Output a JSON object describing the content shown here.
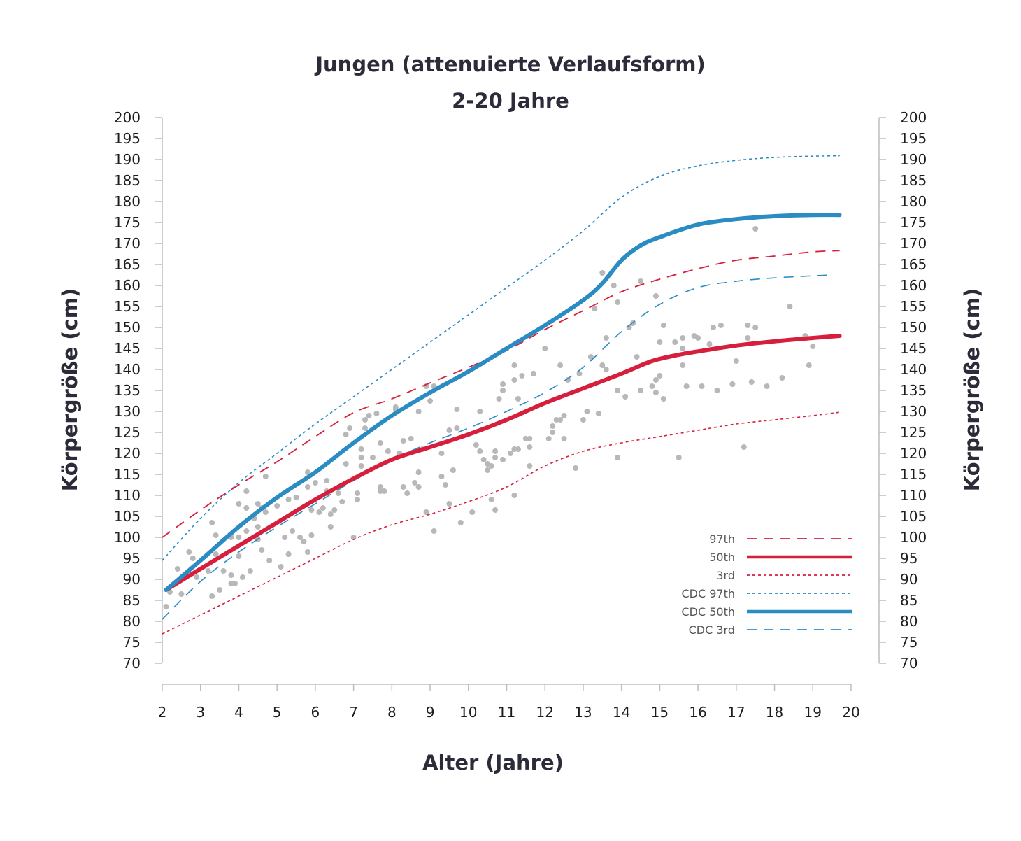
{
  "chart_data": {
    "type": "line",
    "title": "Jungen (attenuierte Verlaufsform)",
    "subtitle": "2-20 Jahre",
    "xlabel": "Alter (Jahre)",
    "ylabel": "Körpergröße (cm)",
    "ylabel_right": "Körpergröße (cm)",
    "xlim": [
      2,
      20
    ],
    "ylim": [
      70,
      200
    ],
    "x_ticks": [
      "2",
      "3",
      "4",
      "5",
      "6",
      "7",
      "8",
      "9",
      "10",
      "11",
      "12",
      "13",
      "14",
      "15",
      "16",
      "17",
      "18",
      "19",
      "20"
    ],
    "y_ticks": [
      "70",
      "75",
      "80",
      "85",
      "90",
      "95",
      "100",
      "105",
      "110",
      "115",
      "120",
      "125",
      "130",
      "135",
      "140",
      "145",
      "150",
      "155",
      "160",
      "165",
      "170",
      "175",
      "180",
      "185",
      "190",
      "195",
      "200"
    ],
    "grid": false,
    "legend_position": "bottom-right",
    "colors": {
      "red": "#d61f3c",
      "blue": "#2b8cc4",
      "points": "#b8b8b8"
    },
    "series": [
      {
        "name": "97th",
        "color": "#d61f3c",
        "style": "dashed",
        "width": 1.8,
        "x": [
          2,
          3,
          4,
          5,
          6,
          7,
          8,
          9,
          10,
          11,
          12,
          13,
          14,
          15,
          16,
          17,
          18,
          19,
          19.7
        ],
        "y": [
          100,
          106.5,
          112.5,
          118,
          124,
          129.7,
          133,
          136.8,
          140.5,
          144.5,
          149.5,
          154,
          158.5,
          161.5,
          164,
          166,
          167,
          168,
          168.3
        ]
      },
      {
        "name": "50th",
        "color": "#d61f3c",
        "style": "solid",
        "width": 6,
        "x": [
          2.1,
          3,
          4,
          5,
          6,
          7,
          8,
          9,
          10,
          11,
          12,
          13,
          14,
          14.8,
          15.5,
          16,
          17,
          18,
          19,
          19.7
        ],
        "y": [
          87.5,
          92.5,
          98,
          103.5,
          109,
          114,
          118.5,
          121.5,
          124.5,
          128,
          132,
          135.5,
          139,
          142,
          143.5,
          144.3,
          145.7,
          146.7,
          147.5,
          148
        ]
      },
      {
        "name": "3rd",
        "color": "#d61f3c",
        "style": "dotted",
        "width": 1.6,
        "x": [
          2,
          3,
          4,
          5,
          6,
          7,
          8,
          9,
          10,
          11,
          12,
          13,
          14,
          15,
          16,
          17,
          18,
          19,
          19.7
        ],
        "y": [
          77,
          81.5,
          86,
          90.5,
          95,
          99.5,
          103,
          105.5,
          108.5,
          112,
          117,
          120.5,
          122.5,
          124,
          125.5,
          127,
          128,
          129,
          129.8
        ]
      },
      {
        "name": "CDC 97th",
        "color": "#2b8cc4",
        "style": "dotted",
        "width": 1.6,
        "x": [
          2,
          3,
          4,
          5,
          6,
          7,
          8,
          9,
          10,
          11,
          12,
          13,
          14,
          15,
          16,
          17,
          18,
          19,
          19.7
        ],
        "y": [
          94.5,
          104.5,
          113,
          120,
          127,
          133.5,
          140,
          146.5,
          153,
          159.5,
          166,
          173,
          181,
          186,
          188.5,
          189.8,
          190.5,
          190.8,
          190.9
        ]
      },
      {
        "name": "CDC 50th",
        "color": "#2b8cc4",
        "style": "solid",
        "width": 6,
        "x": [
          2.1,
          3,
          4,
          5,
          6,
          7,
          8,
          9,
          10,
          11,
          12,
          13,
          13.5,
          14,
          14.5,
          15,
          16,
          17,
          18,
          19,
          19.7
        ],
        "y": [
          87.5,
          94.5,
          102.5,
          109.5,
          115.5,
          122.5,
          129,
          134.5,
          139.5,
          145,
          150.5,
          156.5,
          160.5,
          166,
          169.5,
          171.5,
          174.5,
          175.8,
          176.5,
          176.8,
          176.8
        ]
      },
      {
        "name": "CDC 3rd",
        "color": "#2b8cc4",
        "style": "dashed",
        "width": 1.6,
        "x": [
          2,
          3,
          4,
          5,
          6,
          7,
          8,
          9,
          10,
          11,
          12,
          13,
          14,
          15,
          16,
          17,
          18,
          19,
          19.5
        ],
        "y": [
          80.5,
          89.5,
          96.5,
          102.5,
          108,
          113.5,
          118.5,
          122.5,
          126,
          130,
          134.5,
          140.5,
          149,
          155.5,
          159.5,
          161,
          161.8,
          162.3,
          162.5
        ]
      }
    ],
    "scatter": [
      [
        2.1,
        83.5
      ],
      [
        2.2,
        87
      ],
      [
        2.4,
        92.5
      ],
      [
        2.5,
        86.5
      ],
      [
        2.7,
        96.5
      ],
      [
        2.8,
        95
      ],
      [
        2.9,
        90.5
      ],
      [
        3.2,
        92
      ],
      [
        3.3,
        103.5
      ],
      [
        3.3,
        86
      ],
      [
        3.4,
        100.5
      ],
      [
        3.4,
        96
      ],
      [
        3.5,
        87.5
      ],
      [
        3.6,
        92
      ],
      [
        3.8,
        100
      ],
      [
        3.8,
        89
      ],
      [
        3.8,
        91
      ],
      [
        3.9,
        89
      ],
      [
        4,
        100
      ],
      [
        4,
        95.5
      ],
      [
        4,
        108
      ],
      [
        4.1,
        90.5
      ],
      [
        4.2,
        111
      ],
      [
        4.2,
        101.5
      ],
      [
        4.2,
        107
      ],
      [
        4.3,
        92
      ],
      [
        4.4,
        104.5
      ],
      [
        4.5,
        108
      ],
      [
        4.5,
        102.5
      ],
      [
        4.5,
        99.5
      ],
      [
        4.6,
        107
      ],
      [
        4.6,
        97
      ],
      [
        4.7,
        114.5
      ],
      [
        4.7,
        106
      ],
      [
        4.8,
        94.5
      ],
      [
        5,
        107.5
      ],
      [
        5.1,
        93
      ],
      [
        5.2,
        100
      ],
      [
        5.3,
        96
      ],
      [
        5.3,
        109
      ],
      [
        5.4,
        101.5
      ],
      [
        5.5,
        109.5
      ],
      [
        5.6,
        100
      ],
      [
        5.7,
        99
      ],
      [
        5.8,
        115.5
      ],
      [
        5.8,
        112
      ],
      [
        5.8,
        96.5
      ],
      [
        5.9,
        100.5
      ],
      [
        5.9,
        106.5
      ],
      [
        6,
        113
      ],
      [
        6.1,
        106
      ],
      [
        6.2,
        107
      ],
      [
        6.3,
        111
      ],
      [
        6.3,
        113.5
      ],
      [
        6.4,
        102.5
      ],
      [
        6.4,
        105.5
      ],
      [
        6.5,
        106.5
      ],
      [
        6.6,
        110.5
      ],
      [
        6.7,
        108.5
      ],
      [
        6.8,
        117.5
      ],
      [
        6.8,
        124.5
      ],
      [
        6.9,
        126
      ],
      [
        7,
        100
      ],
      [
        7.1,
        110.5
      ],
      [
        7.1,
        109
      ],
      [
        7.2,
        121
      ],
      [
        7.2,
        119
      ],
      [
        7.2,
        117
      ],
      [
        7.3,
        128
      ],
      [
        7.3,
        126
      ],
      [
        7.4,
        129
      ],
      [
        7.5,
        119
      ],
      [
        7.6,
        129.5
      ],
      [
        7.7,
        111
      ],
      [
        7.7,
        112
      ],
      [
        7.7,
        122.5
      ],
      [
        7.8,
        111
      ],
      [
        7.9,
        120.5
      ],
      [
        8.1,
        131
      ],
      [
        8.1,
        130.5
      ],
      [
        8.2,
        120
      ],
      [
        8.3,
        112
      ],
      [
        8.3,
        123
      ],
      [
        8.4,
        110.5
      ],
      [
        8.5,
        123.5
      ],
      [
        8.6,
        113
      ],
      [
        8.7,
        112
      ],
      [
        8.7,
        115.5
      ],
      [
        8.7,
        130
      ],
      [
        8.8,
        121
      ],
      [
        8.9,
        106
      ],
      [
        8.9,
        136
      ],
      [
        9,
        132.5
      ],
      [
        9.1,
        136
      ],
      [
        9.1,
        101.5
      ],
      [
        9.3,
        120
      ],
      [
        9.3,
        114.5
      ],
      [
        9.4,
        112.5
      ],
      [
        9.5,
        108
      ],
      [
        9.5,
        125.5
      ],
      [
        9.6,
        116
      ],
      [
        9.7,
        126
      ],
      [
        9.7,
        130.5
      ],
      [
        9.8,
        103.5
      ],
      [
        10.1,
        106
      ],
      [
        10.2,
        122
      ],
      [
        10.3,
        130
      ],
      [
        10.3,
        120.5
      ],
      [
        10.4,
        118.5
      ],
      [
        10.5,
        117.5
      ],
      [
        10.5,
        116
      ],
      [
        10.6,
        117
      ],
      [
        10.6,
        109
      ],
      [
        10.7,
        106.5
      ],
      [
        10.7,
        120.5
      ],
      [
        10.7,
        119
      ],
      [
        10.8,
        133
      ],
      [
        10.9,
        118.5
      ],
      [
        10.9,
        135
      ],
      [
        10.9,
        136.5
      ],
      [
        11.1,
        120
      ],
      [
        11.2,
        110
      ],
      [
        11.2,
        121
      ],
      [
        11.2,
        141
      ],
      [
        11.2,
        137.5
      ],
      [
        11.3,
        133
      ],
      [
        11.3,
        121
      ],
      [
        11.4,
        138.5
      ],
      [
        11.5,
        123.5
      ],
      [
        11.6,
        121.5
      ],
      [
        11.6,
        117
      ],
      [
        11.6,
        123.5
      ],
      [
        11.7,
        139
      ],
      [
        11.7,
        139
      ],
      [
        12,
        145
      ],
      [
        12.1,
        123.5
      ],
      [
        12.2,
        126.5
      ],
      [
        12.2,
        125
      ],
      [
        12.3,
        128
      ],
      [
        12.4,
        128
      ],
      [
        12.4,
        141
      ],
      [
        12.5,
        129
      ],
      [
        12.5,
        123.5
      ],
      [
        12.6,
        137.5
      ],
      [
        12.8,
        116.5
      ],
      [
        12.9,
        139
      ],
      [
        13,
        128
      ],
      [
        13.1,
        130
      ],
      [
        13.2,
        143
      ],
      [
        13.3,
        154.5
      ],
      [
        13.4,
        129.5
      ],
      [
        13.5,
        141
      ],
      [
        13.5,
        163
      ],
      [
        13.6,
        140
      ],
      [
        13.6,
        147.5
      ],
      [
        13.8,
        160
      ],
      [
        13.9,
        156
      ],
      [
        13.9,
        119
      ],
      [
        13.9,
        135
      ],
      [
        14.1,
        133.5
      ],
      [
        14.2,
        150
      ],
      [
        14.3,
        151
      ],
      [
        14.4,
        143
      ],
      [
        14.5,
        135
      ],
      [
        14.5,
        161
      ],
      [
        14.8,
        136
      ],
      [
        14.9,
        137.5
      ],
      [
        14.9,
        157.5
      ],
      [
        14.9,
        134.5
      ],
      [
        15,
        146.5
      ],
      [
        15,
        138.5
      ],
      [
        15.1,
        150.5
      ],
      [
        15.1,
        133
      ],
      [
        15.4,
        146.5
      ],
      [
        15.5,
        119
      ],
      [
        15.6,
        141
      ],
      [
        15.6,
        145
      ],
      [
        15.6,
        147.5
      ],
      [
        15.7,
        136
      ],
      [
        15.9,
        148
      ],
      [
        16,
        147.5
      ],
      [
        16.1,
        136
      ],
      [
        16.3,
        146
      ],
      [
        16.4,
        150
      ],
      [
        16.5,
        135
      ],
      [
        16.6,
        150.5
      ],
      [
        16.9,
        136.5
      ],
      [
        17,
        142
      ],
      [
        17.2,
        121.5
      ],
      [
        17.3,
        150.5
      ],
      [
        17.3,
        147.5
      ],
      [
        17.4,
        137
      ],
      [
        17.5,
        173.5
      ],
      [
        17.5,
        150
      ],
      [
        17.8,
        136
      ],
      [
        18.2,
        138
      ],
      [
        18.4,
        155
      ],
      [
        18.8,
        148
      ],
      [
        18.9,
        141
      ],
      [
        19,
        145.5
      ]
    ]
  }
}
